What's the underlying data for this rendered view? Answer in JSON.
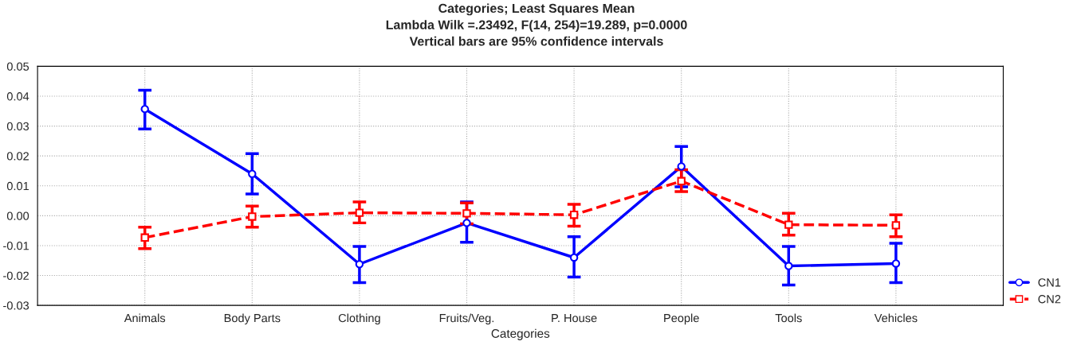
{
  "chart_data": {
    "type": "line",
    "title": "Categories; Least Squares Mean\nLambda Wilk =.23492, F(14, 254)=19.289, p=0.0000\nVertical bars are 95% confidence intervals",
    "xlabel": "Categories",
    "categories": [
      "Animals",
      "Body Parts",
      "Clothing",
      "Fruits/Veg.",
      "P. House",
      "People",
      "Tools",
      "Vehicles"
    ],
    "series": [
      {
        "name": "CN1",
        "color": "#0000ff",
        "marker": "circle",
        "line_style": "solid",
        "values": [
          0.0357,
          0.014,
          -0.0162,
          -0.0024,
          -0.014,
          0.0165,
          -0.0168,
          -0.016
        ],
        "errors": [
          [
            0.029,
            0.042
          ],
          [
            0.0073,
            0.0208
          ],
          [
            -0.0224,
            -0.0103
          ],
          [
            -0.0089,
            0.0046
          ],
          [
            -0.0205,
            -0.007
          ],
          [
            0.0097,
            0.0232
          ],
          [
            -0.0232,
            -0.0103
          ],
          [
            -0.0224,
            -0.0092
          ]
        ]
      },
      {
        "name": "CN2",
        "color": "#ff0000",
        "marker": "square",
        "line_style": "dashed",
        "values": [
          -0.0073,
          -0.0003,
          0.001,
          0.0008,
          0.0003,
          0.0116,
          -0.003,
          -0.0032
        ],
        "errors": [
          [
            -0.011,
            -0.0038
          ],
          [
            -0.0038,
            0.0032
          ],
          [
            -0.0024,
            0.0046
          ],
          [
            -0.0027,
            0.0043
          ],
          [
            -0.0035,
            0.0038
          ],
          [
            0.0081,
            0.0154
          ],
          [
            -0.0065,
            0.0008
          ],
          [
            -0.007,
            0.0003
          ]
        ]
      }
    ],
    "ylim": [
      -0.03,
      0.05
    ],
    "yticks": [
      {
        "value": -0.03,
        "label": "-0.03"
      },
      {
        "value": -0.02,
        "label": "-0.02"
      },
      {
        "value": -0.01,
        "label": "-0.01"
      },
      {
        "value": 0,
        "label": "0.00"
      },
      {
        "value": 0.01,
        "label": "0.01"
      },
      {
        "value": 0.02,
        "label": "0.02"
      },
      {
        "value": 0.03,
        "label": "0.03"
      },
      {
        "value": 0.04,
        "label": "0.04"
      },
      {
        "value": 0.05,
        "label": "0.05"
      }
    ],
    "grid": true,
    "legend": "bottom right"
  }
}
